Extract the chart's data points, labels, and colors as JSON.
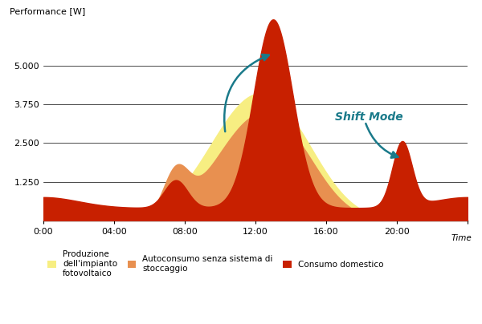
{
  "ylabel": "Performance [W]",
  "xlabel": "Time",
  "ytick_vals": [
    0,
    1250,
    2500,
    3750,
    5000
  ],
  "ytick_labels": [
    "",
    "1.250",
    "2.500",
    "3.750",
    "5.000"
  ],
  "xtick_positions": [
    0,
    4,
    8,
    12,
    16,
    20,
    24
  ],
  "xtick_labels": [
    "0:00",
    "04:00",
    "08:00",
    "12:00",
    "16:00",
    "20:00",
    ""
  ],
  "color_solar": "#F7EE82",
  "color_autoconsume": "#E89050",
  "color_domestic": "#C82000",
  "color_arrow": "#1A7A8A",
  "shift_mode_text": "Shift Mode",
  "shift_mode_color": "#1A7A8A",
  "bg_color": "#FFFFFF",
  "ylim": [
    0,
    6500
  ],
  "legend": [
    {
      "label": "Produzione\ndell'impianto\nfotovoltaico",
      "color": "#F7EE82"
    },
    {
      "label": "Autoconsumo senza sistema di\nstoccaggio",
      "color": "#E89050"
    },
    {
      "label": "Consumo domestico",
      "color": "#C82000"
    }
  ]
}
